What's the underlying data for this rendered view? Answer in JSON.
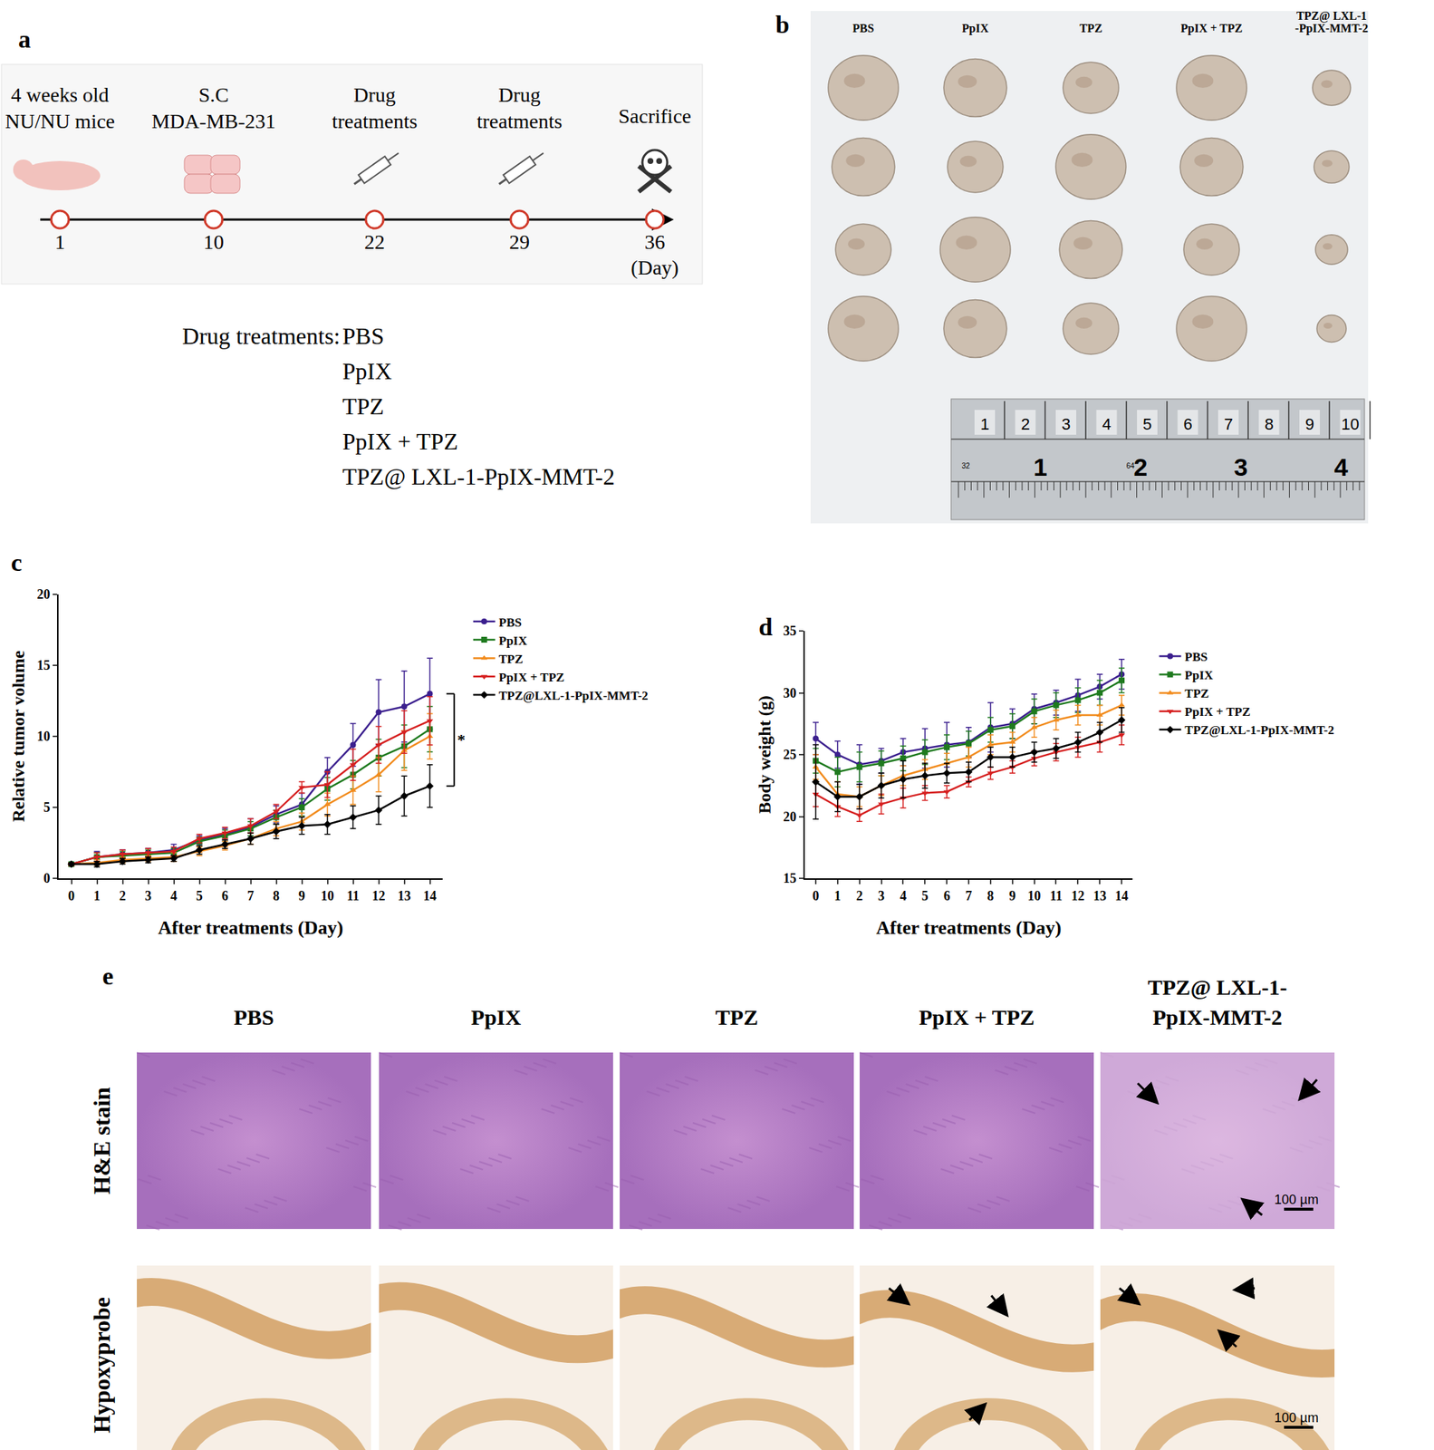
{
  "panel_a": {
    "letter": "a",
    "timeline": [
      {
        "day": 1,
        "label": [
          "4 weeks old",
          "NU/NU mice"
        ]
      },
      {
        "day": 10,
        "label": [
          "S.C",
          "MDA-MB-231"
        ]
      },
      {
        "day": 22,
        "label": [
          "Drug",
          "treatments"
        ]
      },
      {
        "day": 29,
        "label": [
          "Drug",
          "treatments"
        ]
      },
      {
        "day": 36,
        "label": [
          "Sacrifice"
        ]
      }
    ],
    "unit": "(Day)",
    "treatments_label": "Drug treatments:",
    "treatments": [
      "PBS",
      "PpIX",
      "TPZ",
      "PpIX + TPZ",
      "TPZ@ LXL-1-PpIX-MMT-2"
    ]
  },
  "panel_b": {
    "letter": "b",
    "groups": [
      [
        "PBS"
      ],
      [
        "PpIX"
      ],
      [
        "TPZ"
      ],
      [
        "PpIX + TPZ"
      ],
      [
        "TPZ@ LXL-1",
        "-PpIX-MMT-2"
      ]
    ],
    "ruler_top": [
      "1",
      "2",
      "3",
      "4",
      "5",
      "6",
      "7",
      "8",
      "9",
      "10"
    ],
    "ruler_bottom": [
      "1",
      "2",
      "3",
      "4"
    ],
    "ruler_small": [
      "32",
      "64"
    ]
  },
  "chart_data": [
    {
      "letter": "c",
      "type": "line",
      "x_label": "After treatments (Day)",
      "y_label": "Relative tumor volume",
      "x": [
        0,
        1,
        2,
        3,
        4,
        5,
        6,
        7,
        8,
        9,
        10,
        11,
        12,
        13,
        14
      ],
      "xlim": [
        -0.5,
        14.5
      ],
      "xticks": [
        0,
        1,
        2,
        3,
        4,
        5,
        6,
        7,
        8,
        9,
        10,
        11,
        12,
        13,
        14
      ],
      "ylim": [
        0,
        20
      ],
      "yticks": [
        0,
        5,
        10,
        15,
        20
      ],
      "grid": false,
      "legend": "right",
      "series": [
        {
          "name": "PBS",
          "color": "#3b1f8e",
          "marker": "circle",
          "values": [
            1,
            1.5,
            1.7,
            1.8,
            2.0,
            2.7,
            3.1,
            3.6,
            4.5,
            5.2,
            7.5,
            9.4,
            11.7,
            12.1,
            13.0
          ],
          "errors": [
            0.1,
            0.4,
            0.3,
            0.3,
            0.4,
            0.3,
            0.4,
            0.6,
            0.6,
            0.8,
            1.0,
            1.5,
            2.3,
            2.5,
            2.5
          ]
        },
        {
          "name": "PpIX",
          "color": "#1e7a1e",
          "marker": "square",
          "values": [
            1,
            1.5,
            1.6,
            1.7,
            1.8,
            2.6,
            3.0,
            3.5,
            4.3,
            5.0,
            6.3,
            7.3,
            8.5,
            9.3,
            10.5
          ],
          "errors": [
            0.1,
            0.3,
            0.3,
            0.3,
            0.3,
            0.3,
            0.4,
            0.5,
            0.5,
            0.6,
            0.8,
            1.0,
            1.3,
            1.5,
            1.6
          ]
        },
        {
          "name": "TPZ",
          "color": "#f28c1e",
          "marker": "triangle-up",
          "values": [
            1,
            1.1,
            1.3,
            1.4,
            1.5,
            1.9,
            2.3,
            2.8,
            3.5,
            4.0,
            5.2,
            6.2,
            7.3,
            9.0,
            10.0
          ],
          "errors": [
            0.1,
            0.2,
            0.2,
            0.2,
            0.3,
            0.3,
            0.3,
            0.4,
            0.5,
            0.6,
            0.8,
            1.0,
            1.2,
            1.4,
            1.6
          ]
        },
        {
          "name": "PpIX + TPZ",
          "color": "#d62020",
          "marker": "triangle-down",
          "values": [
            1,
            1.5,
            1.7,
            1.8,
            1.9,
            2.8,
            3.2,
            3.7,
            4.7,
            6.4,
            6.6,
            8.0,
            9.4,
            10.3,
            11.1
          ],
          "errors": [
            0.1,
            0.3,
            0.3,
            0.3,
            0.3,
            0.3,
            0.4,
            0.5,
            0.5,
            0.4,
            0.9,
            1.1,
            1.3,
            1.5,
            1.7
          ]
        },
        {
          "name": "TPZ@LXL-1-PpIX-MMT-2",
          "color": "#000000",
          "marker": "diamond",
          "values": [
            1,
            1.0,
            1.2,
            1.3,
            1.4,
            2.0,
            2.4,
            2.8,
            3.3,
            3.7,
            3.8,
            4.3,
            4.8,
            5.8,
            6.5
          ],
          "errors": [
            0.1,
            0.2,
            0.2,
            0.2,
            0.2,
            0.3,
            0.3,
            0.4,
            0.5,
            0.6,
            0.7,
            0.8,
            1.0,
            1.4,
            1.5
          ]
        }
      ],
      "annotations": [
        {
          "text": "*",
          "series": [
            "PBS",
            "TPZ@LXL-1-PpIX-MMT-2"
          ]
        }
      ]
    },
    {
      "letter": "d",
      "type": "line",
      "x_label": "After treatments (Day)",
      "y_label": "Body weight (g)",
      "x": [
        0,
        1,
        2,
        3,
        4,
        5,
        6,
        7,
        8,
        9,
        10,
        11,
        12,
        13,
        14
      ],
      "xlim": [
        -0.5,
        14.5
      ],
      "xticks": [
        0,
        1,
        2,
        3,
        4,
        5,
        6,
        7,
        8,
        9,
        10,
        11,
        12,
        13,
        14
      ],
      "ylim": [
        15,
        35
      ],
      "yticks": [
        15,
        20,
        25,
        30,
        35
      ],
      "grid": false,
      "legend": "right",
      "series": [
        {
          "name": "PBS",
          "color": "#3b1f8e",
          "marker": "circle",
          "values": [
            26.3,
            25.0,
            24.2,
            24.5,
            25.2,
            25.5,
            25.8,
            26.0,
            27.2,
            27.5,
            28.7,
            29.2,
            29.8,
            30.5,
            31.5
          ],
          "errors": [
            1.3,
            1.1,
            1.6,
            1.0,
            1.1,
            1.6,
            1.8,
            1.2,
            2.0,
            1.2,
            1.2,
            1.0,
            1.3,
            1.0,
            1.2
          ]
        },
        {
          "name": "PpIX",
          "color": "#1e7a1e",
          "marker": "square",
          "values": [
            24.5,
            23.6,
            24.0,
            24.3,
            24.7,
            25.2,
            25.6,
            25.9,
            27.0,
            27.3,
            28.5,
            29.0,
            29.4,
            30.0,
            31.0
          ],
          "errors": [
            1.0,
            1.2,
            1.2,
            1.0,
            1.0,
            1.0,
            1.0,
            1.0,
            1.0,
            1.0,
            1.0,
            1.0,
            1.0,
            1.0,
            1.0
          ]
        },
        {
          "name": "TPZ",
          "color": "#f28c1e",
          "marker": "triangle-up",
          "values": [
            24.0,
            21.8,
            21.6,
            22.5,
            23.3,
            23.8,
            24.3,
            24.8,
            25.8,
            26.0,
            27.2,
            27.8,
            28.2,
            28.2,
            29.0
          ],
          "errors": [
            1.0,
            1.0,
            0.8,
            0.8,
            0.8,
            0.8,
            0.8,
            0.8,
            0.8,
            0.8,
            0.8,
            0.8,
            0.8,
            0.8,
            0.8
          ]
        },
        {
          "name": "PpIX + TPZ",
          "color": "#d62020",
          "marker": "triangle-down",
          "values": [
            21.8,
            20.8,
            20.1,
            21.0,
            21.5,
            21.9,
            22.0,
            22.8,
            23.5,
            24.0,
            24.7,
            25.2,
            25.6,
            26.0,
            26.6
          ],
          "errors": [
            1.0,
            0.8,
            0.5,
            0.8,
            0.8,
            0.6,
            0.5,
            0.4,
            0.5,
            0.5,
            0.6,
            0.7,
            0.8,
            0.8,
            0.8
          ]
        },
        {
          "name": "TPZ@LXL-1-PpIX-MMT-2",
          "color": "#000000",
          "marker": "diamond",
          "values": [
            22.8,
            21.6,
            21.6,
            22.5,
            23.0,
            23.3,
            23.5,
            23.6,
            24.8,
            24.8,
            25.2,
            25.5,
            26.0,
            26.8,
            27.8
          ],
          "errors": [
            3.0,
            1.2,
            1.0,
            1.0,
            1.5,
            1.0,
            0.8,
            0.8,
            0.8,
            0.8,
            0.8,
            0.8,
            0.8,
            0.8,
            1.0
          ]
        }
      ]
    }
  ],
  "panel_e": {
    "letter": "e",
    "groups": [
      [
        "PBS"
      ],
      [
        "PpIX"
      ],
      [
        "TPZ"
      ],
      [
        "PpIX + TPZ"
      ],
      [
        "TPZ@ LXL-1-",
        "PpIX-MMT-2"
      ]
    ],
    "rows": [
      "H&E stain",
      "Hypoxyprobe"
    ],
    "scale_bar": "100 µm"
  }
}
